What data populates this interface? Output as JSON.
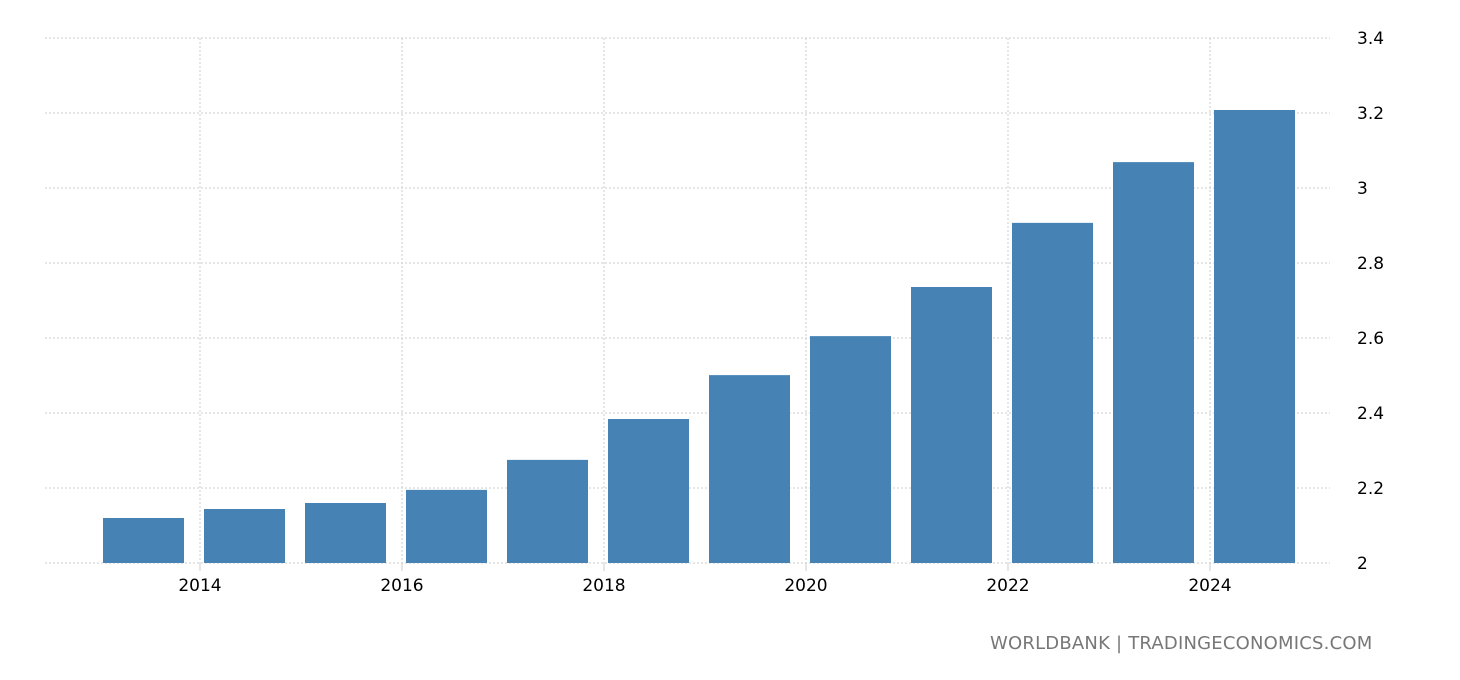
{
  "chart_data": {
    "type": "bar",
    "categories": [
      "2013",
      "2014",
      "2015",
      "2016",
      "2017",
      "2018",
      "2019",
      "2020",
      "2021",
      "2022",
      "2023",
      "2024"
    ],
    "values": [
      2.12,
      2.144,
      2.16,
      2.195,
      2.275,
      2.384,
      2.501,
      2.605,
      2.736,
      2.907,
      3.069,
      3.208
    ],
    "ylim": [
      2,
      3.4
    ],
    "y_ticks": [
      "2",
      "2.2",
      "2.4",
      "2.6",
      "2.8",
      "3",
      "3.2",
      "3.4"
    ],
    "x_ticks": [
      "2014",
      "2016",
      "2018",
      "2020",
      "2022",
      "2024"
    ],
    "y_axis_position": "right",
    "grid": true,
    "bar_color": "#4682b4",
    "title": "",
    "xlabel": "",
    "ylabel": ""
  },
  "source": "WORLDBANK | TRADINGECONOMICS.COM"
}
